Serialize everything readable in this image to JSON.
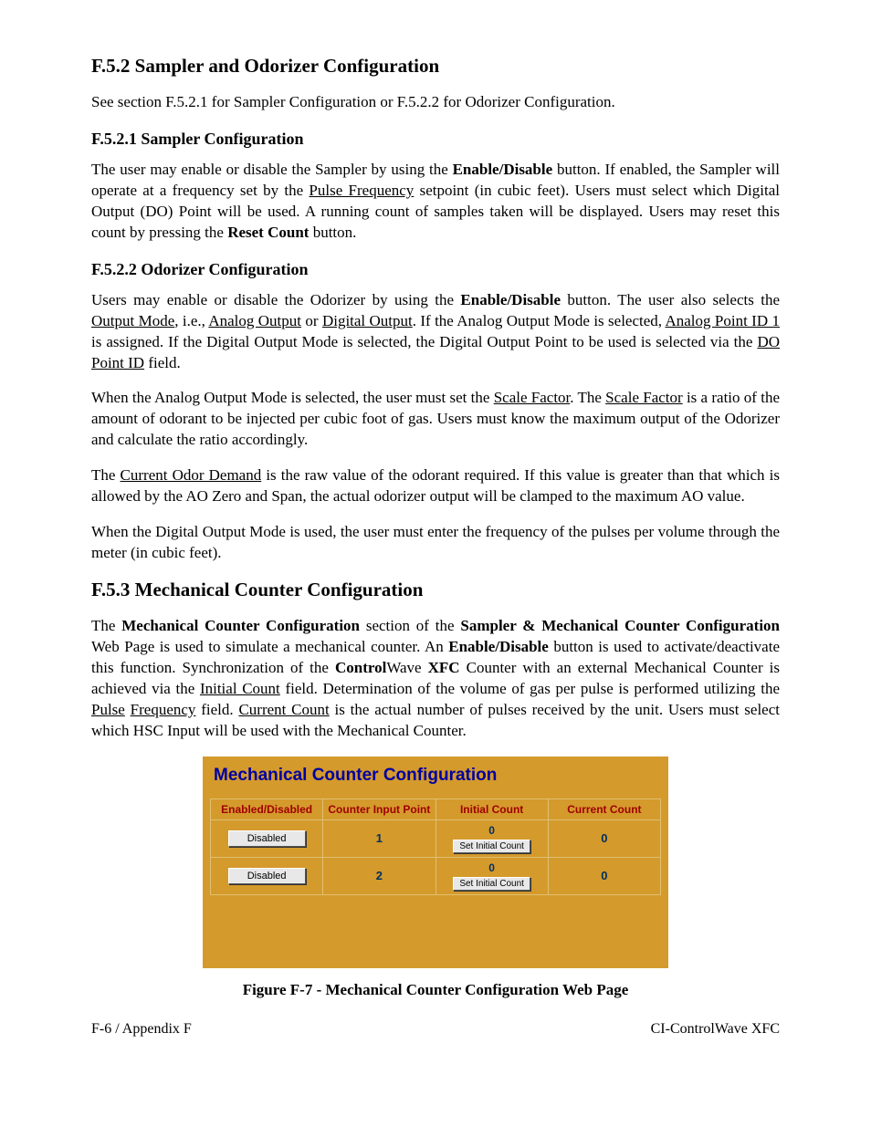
{
  "h_f52": "F.5.2  Sampler and Odorizer Configuration",
  "p_f52_intro": "See section F.5.2.1 for Sampler Configuration or F.5.2.2 for Odorizer Configuration.",
  "h_f521": "F.5.2.1  Sampler Configuration",
  "h_f522": "F.5.2.2  Odorizer Configuration",
  "h_f53": "F.5.3  Mechanical Counter Configuration",
  "panel": {
    "title": "Mechanical Counter Configuration",
    "headers": {
      "c1": "Enabled/Disabled",
      "c2": "Counter Input Point",
      "c3": "Initial Count",
      "c4": "Current Count"
    },
    "rows": [
      {
        "state": "Disabled",
        "point": "1",
        "initial": "0",
        "set_btn": "Set Initial Count",
        "current": "0"
      },
      {
        "state": "Disabled",
        "point": "2",
        "initial": "0",
        "set_btn": "Set Initial Count",
        "current": "0"
      }
    ]
  },
  "caption": "Figure F-7 - Mechanical Counter Configuration Web Page",
  "footer_left": "F-6 / Appendix F",
  "footer_right": "CI-ControlWave XFC"
}
